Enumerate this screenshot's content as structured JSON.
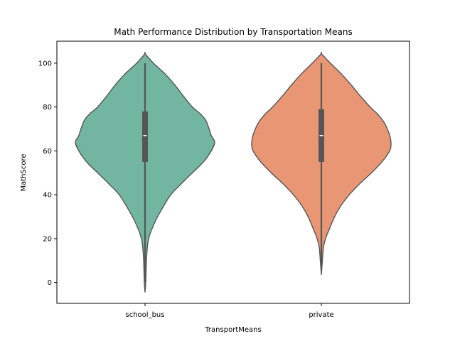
{
  "chart_data": {
    "type": "violin",
    "title": "Math Performance Distribution by Transportation Means",
    "xlabel": "TransportMeans",
    "ylabel": "MathScore",
    "categories": [
      "school_bus",
      "private"
    ],
    "ylim": [
      -9.5,
      110
    ],
    "yticks": [
      0,
      20,
      40,
      60,
      80,
      100
    ],
    "grid": false,
    "series": [
      {
        "category": "school_bus",
        "color": "#72b6a1",
        "min": 0,
        "q1": 55,
        "median": 67,
        "q3": 78,
        "max": 100,
        "violin_range": [
          -4.5,
          104.3
        ],
        "density_profile": [
          [
            -4.5,
            0.0
          ],
          [
            0,
            0.01
          ],
          [
            10,
            0.02
          ],
          [
            18,
            0.04
          ],
          [
            22,
            0.07
          ],
          [
            26,
            0.12
          ],
          [
            30,
            0.18
          ],
          [
            35,
            0.27
          ],
          [
            40,
            0.37
          ],
          [
            45,
            0.52
          ],
          [
            50,
            0.68
          ],
          [
            55,
            0.84
          ],
          [
            60,
            0.95
          ],
          [
            64,
            1.0
          ],
          [
            67,
            0.95
          ],
          [
            70,
            0.92
          ],
          [
            74,
            0.87
          ],
          [
            77,
            0.79
          ],
          [
            80,
            0.68
          ],
          [
            85,
            0.55
          ],
          [
            90,
            0.43
          ],
          [
            95,
            0.29
          ],
          [
            100,
            0.12
          ],
          [
            104.3,
            0.0
          ]
        ]
      },
      {
        "category": "private",
        "color": "#e99675",
        "min": 7,
        "q1": 55,
        "median": 67,
        "q3": 79,
        "max": 100,
        "violin_range": [
          3.5,
          104.3
        ],
        "density_profile": [
          [
            3.5,
            0.0
          ],
          [
            10,
            0.015
          ],
          [
            16,
            0.03
          ],
          [
            20,
            0.06
          ],
          [
            24,
            0.11
          ],
          [
            30,
            0.19
          ],
          [
            35,
            0.28
          ],
          [
            40,
            0.4
          ],
          [
            45,
            0.55
          ],
          [
            50,
            0.72
          ],
          [
            55,
            0.87
          ],
          [
            60,
            0.98
          ],
          [
            63,
            1.0
          ],
          [
            66,
            0.99
          ],
          [
            69,
            0.96
          ],
          [
            73,
            0.9
          ],
          [
            77,
            0.8
          ],
          [
            80,
            0.7
          ],
          [
            85,
            0.56
          ],
          [
            90,
            0.43
          ],
          [
            95,
            0.29
          ],
          [
            100,
            0.13
          ],
          [
            104.3,
            0.0
          ]
        ]
      }
    ],
    "line_color": "#555555",
    "box_color": "#555555",
    "median_color": "#ffffff"
  }
}
